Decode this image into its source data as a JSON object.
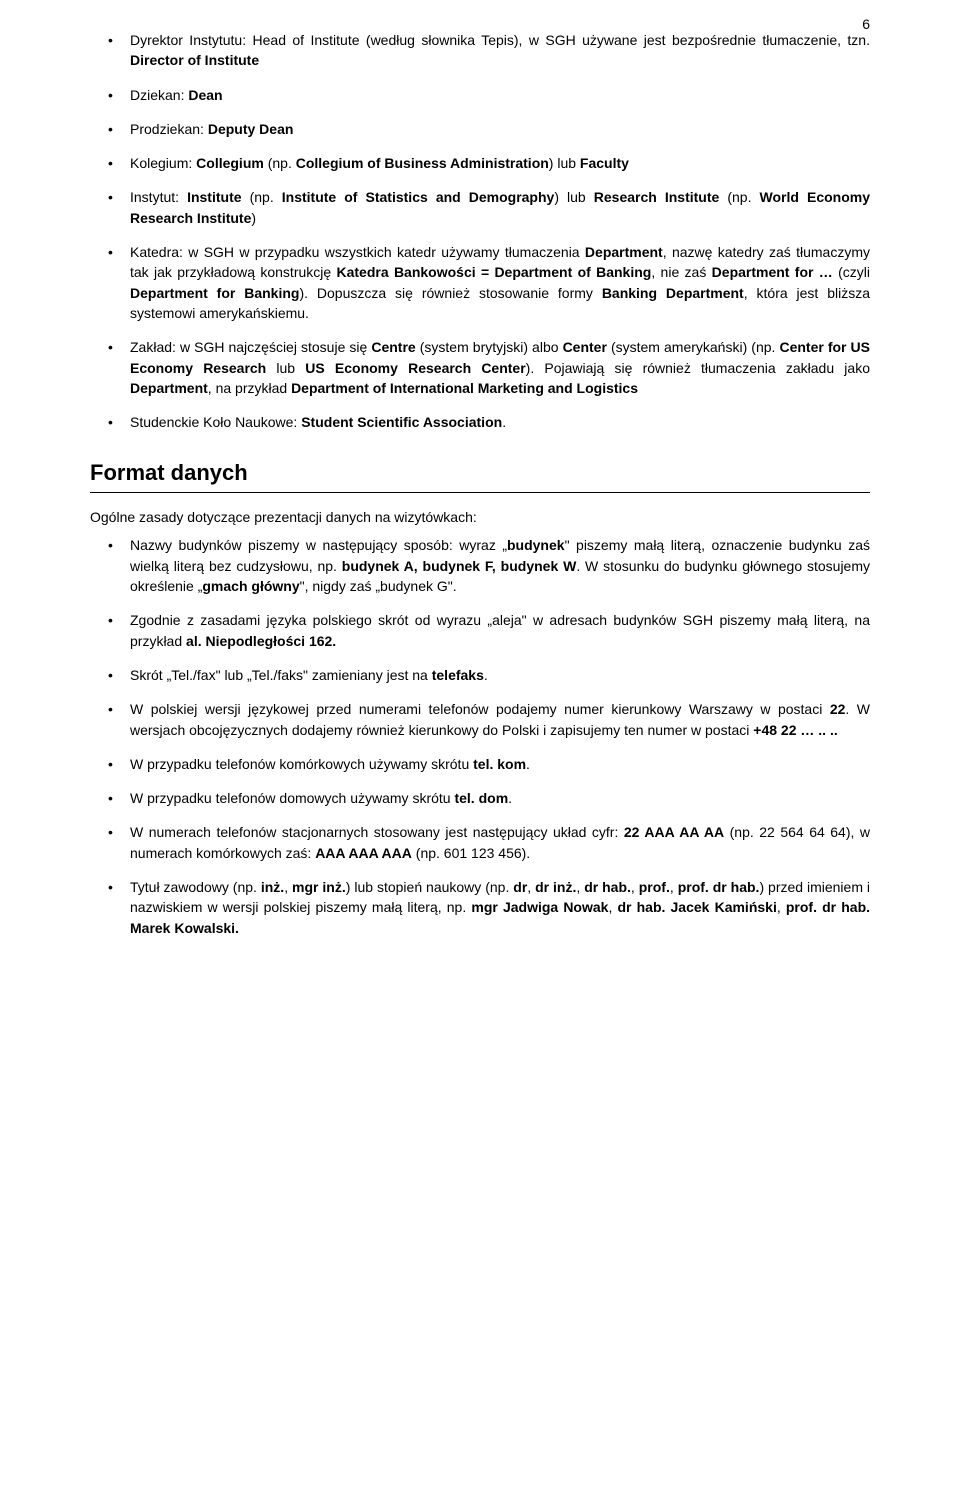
{
  "page_number": "6",
  "top_list": [
    {
      "html": "Dyrektor Instytutu: Head of Institute (według słownika Tepis), w SGH używane jest bezpośrednie tłumaczenie, tzn. <span class='b'>Director of Institute</span>"
    },
    {
      "html": "Dziekan: <span class='b'>Dean</span>"
    },
    {
      "html": "Prodziekan: <span class='b'>Deputy Dean</span>"
    },
    {
      "html": "Kolegium: <span class='b'>Collegium</span> (np. <span class='b'>Collegium of Business Administration</span>) lub <span class='b'>Faculty</span>"
    },
    {
      "html": "Instytut: <span class='b'>Institute</span> (np. <span class='b'>Institute of Statistics and Demography</span>) lub <span class='b'>Research Institute</span> (np. <span class='b'>World Economy Research Institute</span>)"
    },
    {
      "html": "Katedra: w SGH w przypadku wszystkich katedr używamy tłumaczenia <span class='b'>Department</span>, nazwę katedry zaś tłumaczymy tak jak przykładową konstrukcję <span class='b'>Katedra Bankowości = Department of Banking</span>, nie zaś <span class='b'>Department for …</span> (czyli <span class='b'>Department for Banking</span>). Dopuszcza się również stosowanie formy <span class='b'>Banking Department</span>, która jest bliższa systemowi amerykańskiemu."
    },
    {
      "html": "Zakład: w SGH najczęściej stosuje się <span class='b'>Centre</span> (system brytyjski) albo <span class='b'>Center</span> (system amerykański) (np. <span class='b'>Center for US Economy Research</span> lub <span class='b'>US Economy Research Center</span>). Pojawiają się również tłumaczenia zakładu jako <span class='b'>Department</span>, na przykład <span class='b'>Department of International Marketing and Logistics</span>"
    },
    {
      "html": "Studenckie Koło Naukowe: <span class='b'>Student Scientific Association</span>."
    }
  ],
  "section_heading": "Format danych",
  "intro": "Ogólne zasady dotyczące prezentacji danych na wizytówkach:",
  "bottom_list": [
    {
      "html": "Nazwy budynków piszemy w następujący sposób: wyraz „<span class='b'>budynek</span>\" piszemy małą literą, oznaczenie budynku zaś wielką literą bez cudzysłowu, np. <span class='b'>budynek A, budynek F, budynek W</span>. W stosunku do budynku głównego stosujemy określenie „<span class='b'>gmach główny</span>\", nigdy zaś „budynek G\"."
    },
    {
      "html": "Zgodnie z zasadami języka polskiego skrót od wyrazu „aleja\" w adresach budynków SGH piszemy małą literą, na przykład <span class='b'>al. Niepodległości 162.</span>"
    },
    {
      "html": "Skrót „Tel./fax\" lub „Tel./faks\" zamieniany jest na <span class='b'>telefaks</span>."
    },
    {
      "html": "W polskiej wersji językowej przed numerami telefonów podajemy numer kierunkowy Warszawy w postaci <span class='b'>22</span>. W wersjach obcojęzycznych dodajemy również kierunkowy do Polski i zapisujemy ten numer w postaci <span class='b'>+48 22 … .. ..</span>"
    },
    {
      "html": "W przypadku telefonów komórkowych używamy skrótu <span class='b'>tel. kom</span>."
    },
    {
      "html": "W przypadku telefonów domowych używamy skrótu <span class='b'>tel. dom</span>."
    },
    {
      "html": "W numerach telefonów stacjonarnych stosowany jest następujący układ cyfr: <span class='b'>22 AAA AA AA</span> (np. 22 564 64 64), w numerach komórkowych zaś: <span class='b'>AAA AAA AAA</span> (np. 601 123 456)."
    },
    {
      "html": "Tytuł zawodowy (np. <span class='b'>inż.</span>, <span class='b'>mgr inż.</span>) lub stopień naukowy (np. <span class='b'>dr</span>, <span class='b'>dr inż.</span>, <span class='b'>dr hab.</span>, <span class='b'>prof.</span>, <span class='b'>prof. dr hab.</span>) przed imieniem i nazwiskiem w wersji polskiej piszemy małą literą, np. <span class='b'>mgr Jadwiga Nowak</span>, <span class='b'>dr hab. Jacek Kamiński</span>, <span class='b'>prof. dr hab. Marek Kowalski.</span>"
    }
  ]
}
